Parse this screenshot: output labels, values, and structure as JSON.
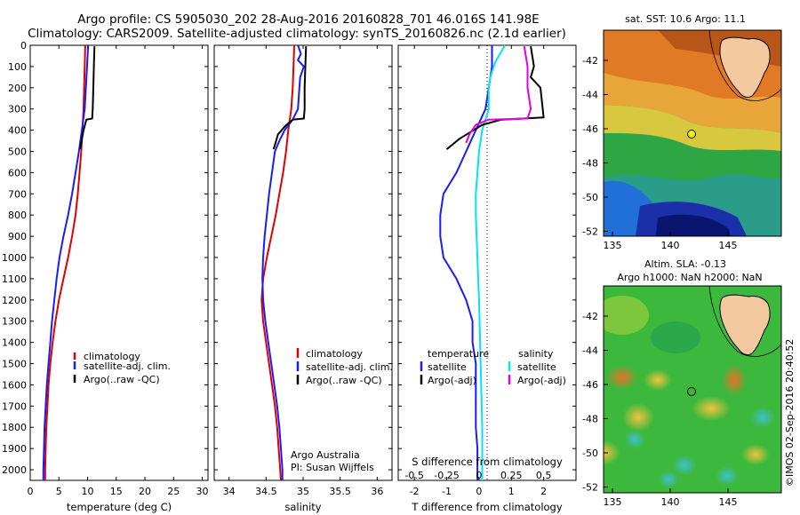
{
  "header": {
    "title_line1": "Argo profile: CS 5905030_202 28-Aug-2016 20160828_701 46.016S 141.98E",
    "title_line2": "Climatology: CARS2009. Satellite-adjusted climatology: synTS_20160826.nc (2.1d earlier)"
  },
  "colors": {
    "climatology": "#e00000",
    "satellite": "#1a1aff",
    "argo": "#000000",
    "cyan": "#00e5ee",
    "magenta": "#e000e0"
  },
  "chart_data": [
    {
      "type": "line",
      "panel": "temperature",
      "xlabel": "temperature (deg C)",
      "ylabel": "",
      "xlim": [
        0,
        31
      ],
      "ylim": [
        2050,
        0
      ],
      "xticks": [
        0,
        5,
        10,
        15,
        20,
        25,
        30
      ],
      "yticks": [
        0,
        100,
        200,
        300,
        400,
        500,
        600,
        700,
        800,
        900,
        1000,
        1100,
        1200,
        1300,
        1400,
        1500,
        1600,
        1700,
        1800,
        1900,
        2000
      ],
      "legend": [
        "climatology",
        "satellite-adj. clim.",
        "Argo(..raw -QC)"
      ],
      "series": [
        {
          "name": "climatology",
          "points": [
            [
              9.6,
              0
            ],
            [
              9.5,
              100
            ],
            [
              9.4,
              200
            ],
            [
              9.3,
              300
            ],
            [
              9.1,
              400
            ],
            [
              8.9,
              500
            ],
            [
              8.6,
              600
            ],
            [
              8.3,
              700
            ],
            [
              7.9,
              800
            ],
            [
              7.3,
              900
            ],
            [
              6.6,
              1000
            ],
            [
              5.8,
              1100
            ],
            [
              5.0,
              1200
            ],
            [
              4.4,
              1300
            ],
            [
              3.9,
              1400
            ],
            [
              3.5,
              1500
            ],
            [
              3.2,
              1600
            ],
            [
              3.0,
              1700
            ],
            [
              2.8,
              1800
            ],
            [
              2.7,
              1900
            ],
            [
              2.6,
              2000
            ],
            [
              2.6,
              2050
            ]
          ]
        },
        {
          "name": "satellite-adj. clim.",
          "points": [
            [
              10.1,
              0
            ],
            [
              9.9,
              100
            ],
            [
              9.7,
              200
            ],
            [
              9.5,
              300
            ],
            [
              9.0,
              400
            ],
            [
              8.5,
              500
            ],
            [
              7.9,
              600
            ],
            [
              7.3,
              700
            ],
            [
              6.6,
              800
            ],
            [
              5.8,
              900
            ],
            [
              5.1,
              1000
            ],
            [
              4.6,
              1100
            ],
            [
              4.2,
              1200
            ],
            [
              3.8,
              1300
            ],
            [
              3.5,
              1400
            ],
            [
              3.2,
              1500
            ],
            [
              2.9,
              1600
            ],
            [
              2.7,
              1700
            ],
            [
              2.5,
              1800
            ],
            [
              2.4,
              1900
            ],
            [
              2.3,
              2000
            ],
            [
              2.3,
              2050
            ]
          ]
        },
        {
          "name": "Argo(..raw -QC)",
          "points": [
            [
              11.2,
              5
            ],
            [
              11.1,
              100
            ],
            [
              11.0,
              200
            ],
            [
              10.9,
              300
            ],
            [
              10.8,
              345
            ],
            [
              9.8,
              350
            ],
            [
              9.3,
              400
            ],
            [
              8.9,
              460
            ],
            [
              8.7,
              490
            ]
          ]
        }
      ]
    },
    {
      "type": "line",
      "panel": "salinity",
      "xlabel": "salinity",
      "xlim": [
        33.8,
        36.2
      ],
      "ylim": [
        2050,
        0
      ],
      "xticks": [
        34,
        34.5,
        35,
        35.5,
        36
      ],
      "legend": [
        "climatology",
        "satellite-adj. clim.",
        "Argo(..raw -QC)"
      ],
      "series": [
        {
          "name": "climatology",
          "points": [
            [
              34.88,
              0
            ],
            [
              34.87,
              100
            ],
            [
              34.86,
              200
            ],
            [
              34.84,
              300
            ],
            [
              34.8,
              400
            ],
            [
              34.77,
              500
            ],
            [
              34.73,
              600
            ],
            [
              34.68,
              700
            ],
            [
              34.63,
              800
            ],
            [
              34.57,
              900
            ],
            [
              34.51,
              1000
            ],
            [
              34.46,
              1100
            ],
            [
              34.44,
              1200
            ],
            [
              34.46,
              1300
            ],
            [
              34.5,
              1400
            ],
            [
              34.54,
              1500
            ],
            [
              34.58,
              1600
            ],
            [
              34.62,
              1700
            ],
            [
              34.65,
              1800
            ],
            [
              34.67,
              1900
            ],
            [
              34.69,
              2000
            ],
            [
              34.7,
              2050
            ]
          ]
        },
        {
          "name": "satellite-adj. clim.",
          "points": [
            [
              34.93,
              0
            ],
            [
              34.97,
              40
            ],
            [
              34.93,
              70
            ],
            [
              35.01,
              100
            ],
            [
              34.96,
              150
            ],
            [
              34.95,
              200
            ],
            [
              34.93,
              300
            ],
            [
              34.86,
              350
            ],
            [
              34.75,
              400
            ],
            [
              34.68,
              450
            ],
            [
              34.62,
              500
            ],
            [
              34.58,
              600
            ],
            [
              34.54,
              700
            ],
            [
              34.51,
              800
            ],
            [
              34.48,
              900
            ],
            [
              34.46,
              1000
            ],
            [
              34.45,
              1100
            ],
            [
              34.46,
              1200
            ],
            [
              34.49,
              1300
            ],
            [
              34.53,
              1400
            ],
            [
              34.57,
              1500
            ],
            [
              34.61,
              1600
            ],
            [
              34.65,
              1700
            ],
            [
              34.68,
              1800
            ],
            [
              34.7,
              1900
            ],
            [
              34.72,
              2000
            ],
            [
              34.72,
              2050
            ]
          ]
        },
        {
          "name": "Argo(..raw -QC)",
          "points": [
            [
              35.04,
              5
            ],
            [
              35.03,
              100
            ],
            [
              35.02,
              200
            ],
            [
              35.02,
              300
            ],
            [
              35.01,
              345
            ],
            [
              34.86,
              350
            ],
            [
              34.76,
              380
            ],
            [
              34.66,
              420
            ],
            [
              34.62,
              470
            ],
            [
              34.6,
              490
            ]
          ]
        }
      ],
      "annotation": [
        "Argo Australia",
        "PI: Susan Wijffels"
      ]
    },
    {
      "type": "line",
      "panel": "difference",
      "xlabel": "T difference from climatology",
      "xlabel_top": "S difference from climatology",
      "xlim": [
        -2.5,
        3.0
      ],
      "ylim": [
        2050,
        0
      ],
      "xticks": [
        -2,
        -1,
        0,
        1,
        2
      ],
      "xticks_s": [
        "-0.5",
        "-0.25",
        "0",
        "0.25",
        "0.5"
      ],
      "legend_temperature_title": "temperature",
      "legend_salinity_title": "salinity",
      "legend": [
        "satellite",
        "Argo(-adj)",
        "satellite",
        "Argo(-adj)"
      ],
      "series": [
        {
          "name": "T satellite",
          "points": [
            [
              0.4,
              0
            ],
            [
              0.4,
              100
            ],
            [
              0.3,
              200
            ],
            [
              0.2,
              300
            ],
            [
              -0.1,
              400
            ],
            [
              -0.4,
              500
            ],
            [
              -0.7,
              600
            ],
            [
              -1.1,
              700
            ],
            [
              -1.2,
              800
            ],
            [
              -1.2,
              900
            ],
            [
              -1.1,
              1000
            ],
            [
              -0.7,
              1100
            ],
            [
              -0.4,
              1200
            ],
            [
              -0.2,
              1300
            ],
            [
              -0.2,
              1400
            ],
            [
              -0.1,
              1500
            ],
            [
              -0.1,
              1600
            ],
            [
              -0.1,
              1700
            ],
            [
              -0.1,
              1800
            ],
            [
              -0.05,
              1900
            ],
            [
              -0.05,
              2000
            ],
            [
              -0.05,
              2050
            ]
          ]
        },
        {
          "name": "S satellite",
          "points": [
            [
              0.8,
              0
            ],
            [
              0.5,
              80
            ],
            [
              0.35,
              150
            ],
            [
              0.3,
              200
            ],
            [
              0.3,
              300
            ],
            [
              0.2,
              350
            ],
            [
              0.1,
              400
            ],
            [
              0.0,
              500
            ],
            [
              -0.05,
              600
            ],
            [
              -0.1,
              700
            ],
            [
              -0.1,
              800
            ],
            [
              -0.05,
              1000
            ],
            [
              0,
              1200
            ],
            [
              0.05,
              1500
            ],
            [
              0.1,
              1800
            ],
            [
              0.1,
              2050
            ]
          ]
        },
        {
          "name": "T Argo(-adj)",
          "points": [
            [
              1.6,
              5
            ],
            [
              1.7,
              100
            ],
            [
              1.6,
              150
            ],
            [
              1.9,
              200
            ],
            [
              2.0,
              340
            ],
            [
              0.7,
              350
            ],
            [
              0.1,
              375
            ],
            [
              -0.6,
              440
            ],
            [
              -1.0,
              490
            ]
          ]
        },
        {
          "name": "S Argo(-adj)",
          "points": [
            [
              1.4,
              5
            ],
            [
              1.5,
              100
            ],
            [
              1.5,
              200
            ],
            [
              1.6,
              300
            ],
            [
              1.5,
              345
            ],
            [
              0.3,
              350
            ],
            [
              -0.1,
              375
            ],
            [
              -0.3,
              420
            ],
            [
              -0.4,
              460
            ]
          ]
        }
      ]
    }
  ],
  "maps": {
    "sst": {
      "title": "sat. SST: 10.6 Argo: 11.1",
      "xticks": [
        "135",
        "140",
        "145"
      ],
      "yticks": [
        "-42",
        "-44",
        "-46",
        "-48",
        "-50",
        "-52"
      ]
    },
    "sla": {
      "title_line1": "Altim. SLA: -0.13",
      "title_line2": "Argo h1000: NaN h2000: NaN",
      "xticks": [
        "135",
        "140",
        "145"
      ],
      "yticks": [
        "-42",
        "-44",
        "-46",
        "-48",
        "-50",
        "-52"
      ]
    },
    "credit": "©IMOS 02-Sep-2016 20:40:52"
  }
}
